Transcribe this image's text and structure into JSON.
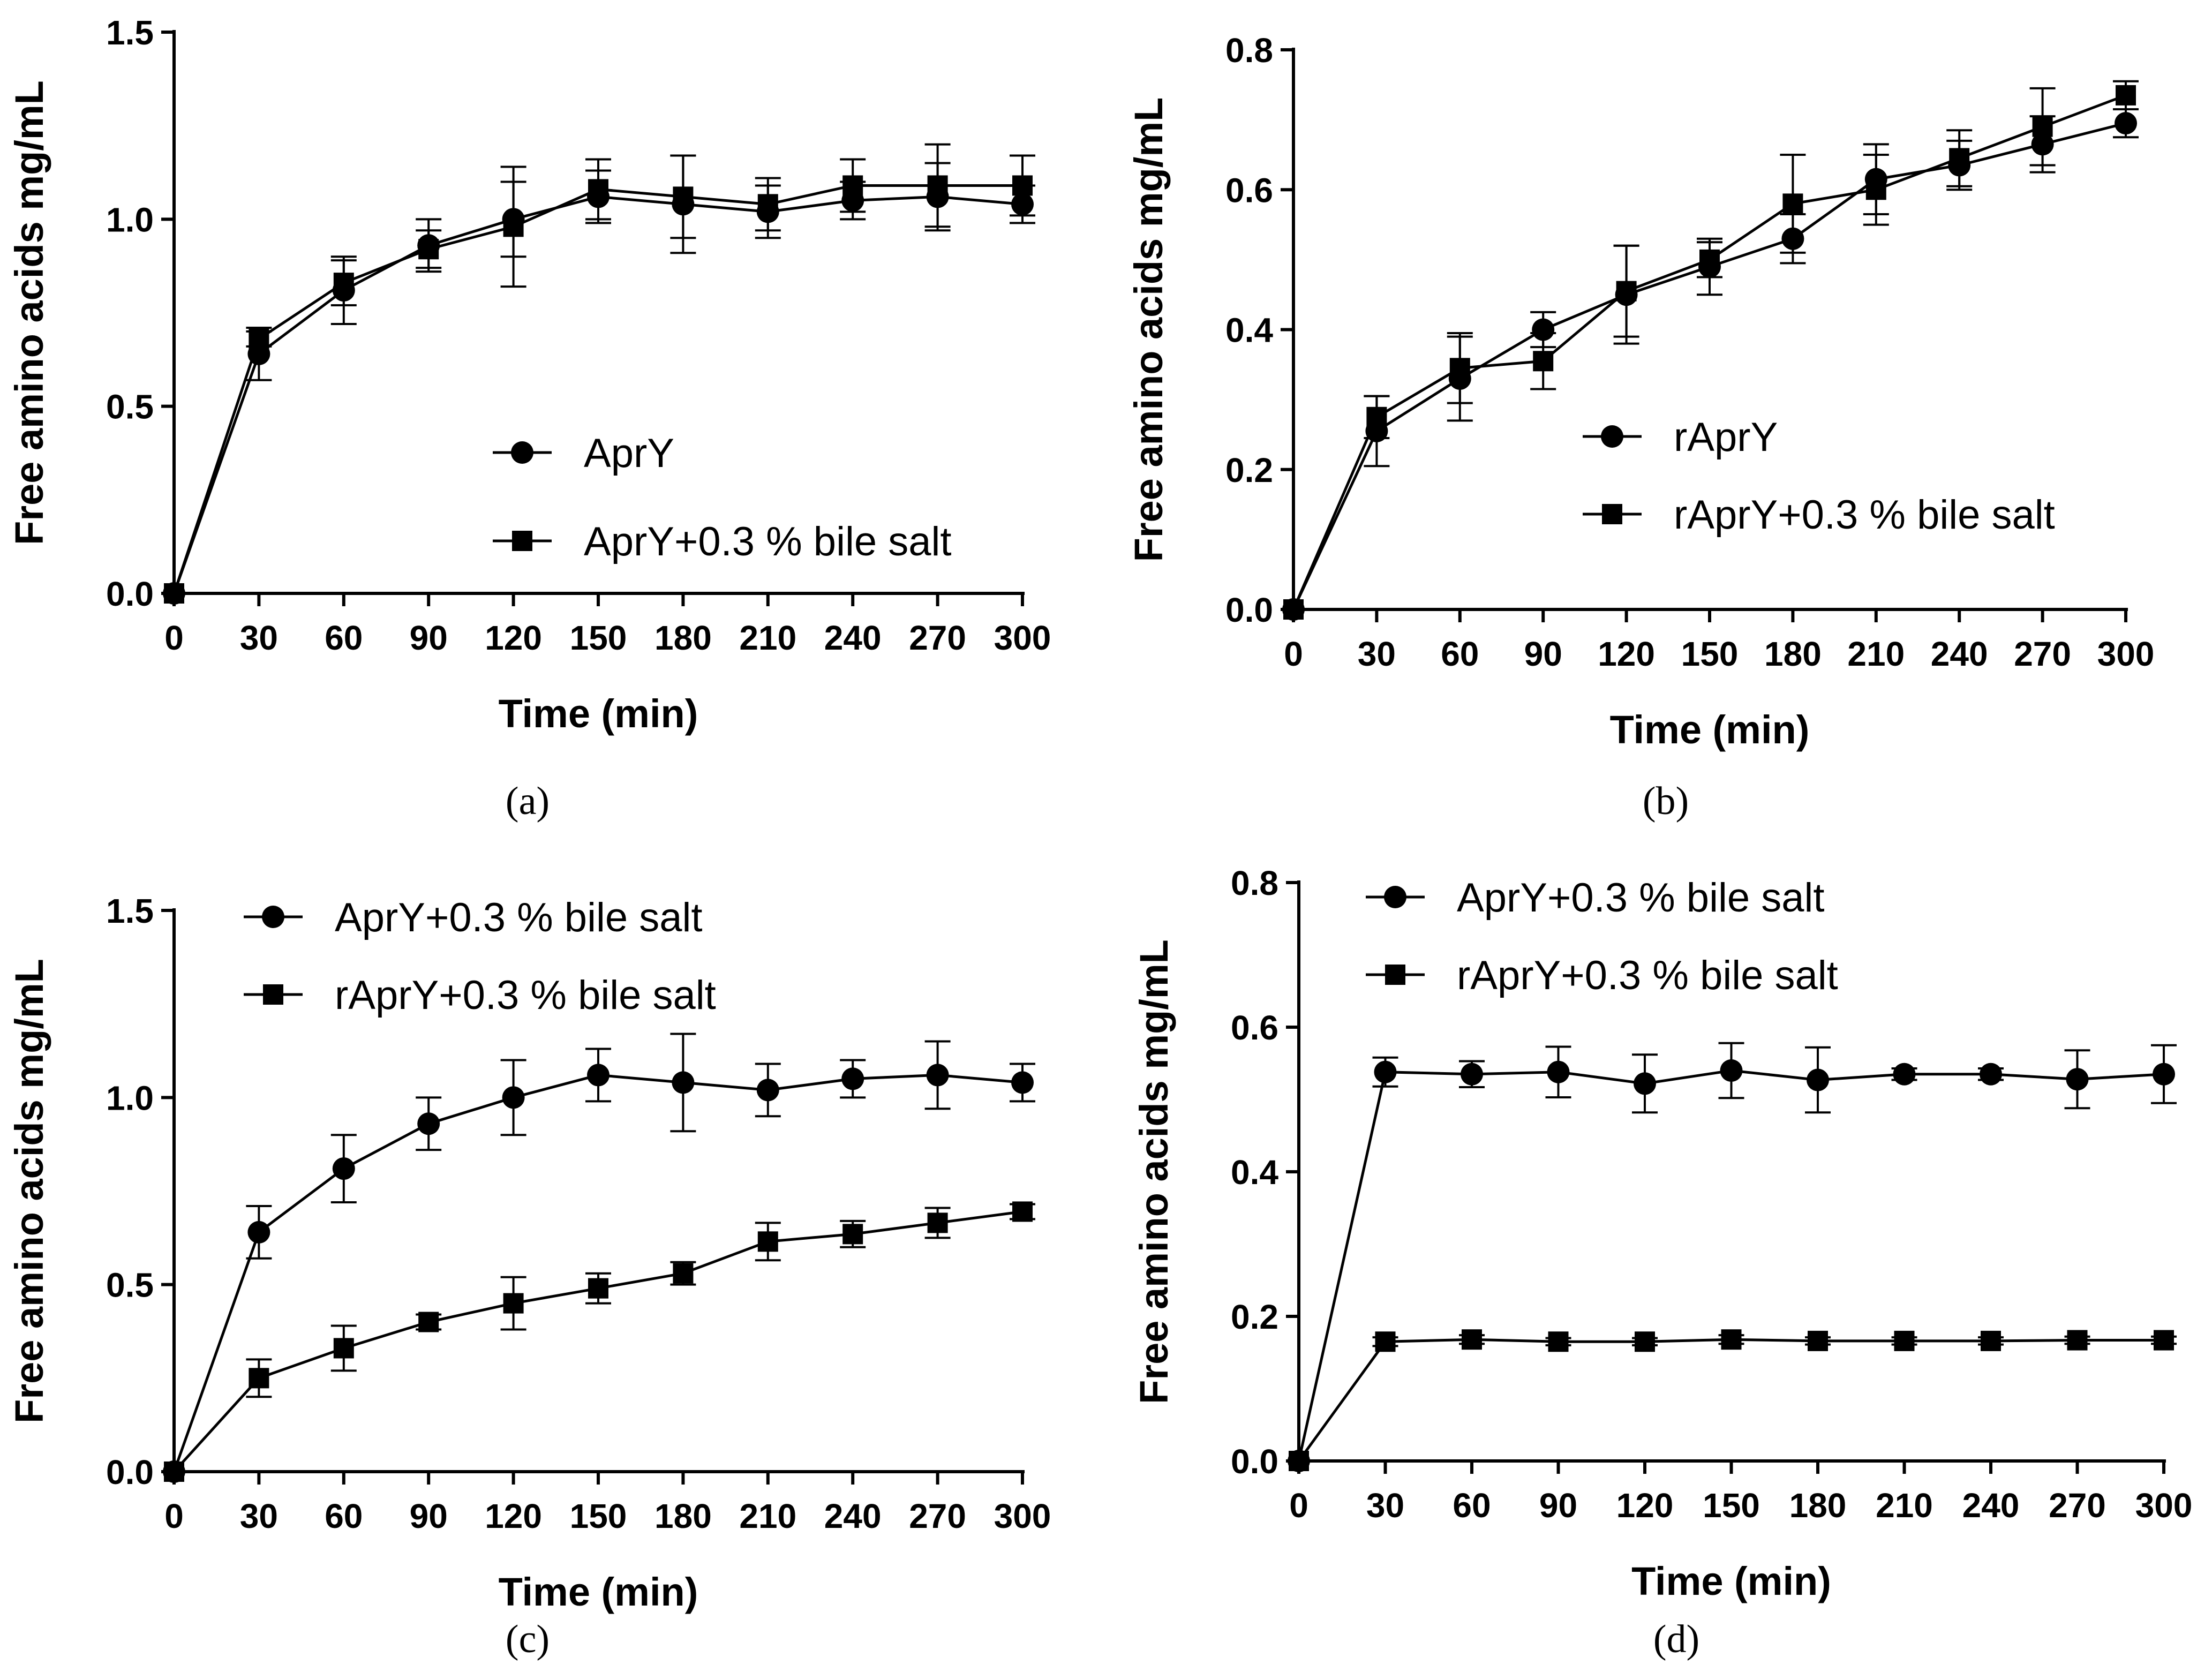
{
  "chart_data": [
    {
      "type": "line",
      "panel_label": "(a)",
      "xlabel": "Time (min)",
      "ylabel": "Free amino acids mg/mL",
      "x": [
        0,
        30,
        60,
        90,
        120,
        150,
        180,
        210,
        240,
        270,
        300
      ],
      "xticks": [
        "0",
        "30",
        "60",
        "90",
        "120",
        "150",
        "180",
        "210",
        "240",
        "270",
        "300"
      ],
      "yticks": [
        "0.0",
        "0.5",
        "1.0",
        "1.5"
      ],
      "xlim": [
        0,
        300
      ],
      "ylim": [
        0,
        1.5
      ],
      "legend_position": "center-right",
      "series": [
        {
          "name": "AprY",
          "marker": "circle",
          "values": [
            0,
            0.64,
            0.81,
            0.93,
            1.0,
            1.06,
            1.04,
            1.02,
            1.05,
            1.06,
            1.04
          ],
          "errors": [
            0,
            0.07,
            0.09,
            0.07,
            0.1,
            0.07,
            0.13,
            0.07,
            0.05,
            0.09,
            0.05
          ]
        },
        {
          "name": "AprY+0.3 % bile salt",
          "marker": "square",
          "values": [
            0,
            0.68,
            0.83,
            0.92,
            0.98,
            1.08,
            1.06,
            1.04,
            1.09,
            1.09,
            1.09
          ],
          "errors": [
            0,
            0.02,
            0.06,
            0.05,
            0.16,
            0.08,
            0.11,
            0.07,
            0.07,
            0.11,
            0.08
          ]
        }
      ]
    },
    {
      "type": "line",
      "panel_label": "(b)",
      "xlabel": "Time (min)",
      "ylabel": "Free amino acids mg/mL",
      "x": [
        0,
        30,
        60,
        90,
        120,
        150,
        180,
        210,
        240,
        270,
        300
      ],
      "xticks": [
        "0",
        "30",
        "60",
        "90",
        "120",
        "150",
        "180",
        "210",
        "240",
        "270",
        "300"
      ],
      "yticks": [
        "0.0",
        "0.2",
        "0.4",
        "0.6",
        "0.8"
      ],
      "xlim": [
        0,
        300
      ],
      "ylim": [
        0,
        0.8
      ],
      "legend_position": "center-right",
      "series": [
        {
          "name": "rAprY",
          "marker": "circle",
          "values": [
            0,
            0.255,
            0.33,
            0.4,
            0.45,
            0.49,
            0.53,
            0.615,
            0.635,
            0.665,
            0.695
          ],
          "errors": [
            0,
            0.05,
            0.06,
            0.025,
            0.07,
            0.04,
            0.035,
            0.05,
            0.035,
            0.04,
            0.02
          ]
        },
        {
          "name": "rAprY+0.3 % bile salt",
          "marker": "square",
          "values": [
            0,
            0.275,
            0.345,
            0.355,
            0.455,
            0.5,
            0.58,
            0.6,
            0.645,
            0.69,
            0.735
          ],
          "errors": [
            0,
            0.03,
            0.05,
            0.04,
            0.065,
            0.025,
            0.07,
            0.05,
            0.04,
            0.055,
            0.02
          ]
        }
      ]
    },
    {
      "type": "line",
      "panel_label": "(c)",
      "xlabel": "Time (min)",
      "ylabel": "Free amino acids mg/mL",
      "x": [
        0,
        30,
        60,
        90,
        120,
        150,
        180,
        210,
        240,
        270,
        300
      ],
      "xticks": [
        "0",
        "30",
        "60",
        "90",
        "120",
        "150",
        "180",
        "210",
        "240",
        "270",
        "300"
      ],
      "yticks": [
        "0.0",
        "0.5",
        "1.0",
        "1.5"
      ],
      "xlim": [
        0,
        300
      ],
      "ylim": [
        0,
        1.5
      ],
      "legend_position": "top-center",
      "series": [
        {
          "name": "AprY+0.3 % bile salt",
          "marker": "circle",
          "values": [
            0,
            0.64,
            0.81,
            0.93,
            1.0,
            1.06,
            1.04,
            1.02,
            1.05,
            1.06,
            1.04
          ],
          "errors": [
            0,
            0.07,
            0.09,
            0.07,
            0.1,
            0.07,
            0.13,
            0.07,
            0.05,
            0.09,
            0.05
          ]
        },
        {
          "name": "rAprY+0.3 % bile salt",
          "marker": "square",
          "values": [
            0,
            0.25,
            0.33,
            0.4,
            0.45,
            0.49,
            0.53,
            0.615,
            0.635,
            0.665,
            0.695
          ],
          "errors": [
            0,
            0.05,
            0.06,
            0.02,
            0.07,
            0.04,
            0.03,
            0.05,
            0.035,
            0.04,
            0.02
          ]
        }
      ]
    },
    {
      "type": "line",
      "panel_label": "(d)",
      "xlabel": "Time (min)",
      "ylabel": "Free amino acids mg/mL",
      "x": [
        0,
        30,
        60,
        90,
        120,
        150,
        180,
        210,
        240,
        270,
        300
      ],
      "xticks": [
        "0",
        "30",
        "60",
        "90",
        "120",
        "150",
        "180",
        "210",
        "240",
        "270",
        "300"
      ],
      "yticks": [
        "0.0",
        "0.2",
        "0.4",
        "0.6",
        "0.8"
      ],
      "xlim": [
        0,
        300
      ],
      "ylim": [
        0,
        0.8
      ],
      "legend_position": "top-center",
      "series": [
        {
          "name": "AprY+0.3 % bile salt",
          "marker": "circle",
          "values": [
            0,
            0.538,
            0.535,
            0.538,
            0.522,
            0.54,
            0.527,
            0.535,
            0.535,
            0.528,
            0.535
          ],
          "errors": [
            0,
            0.02,
            0.018,
            0.035,
            0.04,
            0.038,
            0.045,
            0.008,
            0.008,
            0.04,
            0.04
          ]
        },
        {
          "name": "rAprY+0.3 % bile salt",
          "marker": "square",
          "values": [
            0,
            0.165,
            0.168,
            0.165,
            0.165,
            0.168,
            0.166,
            0.166,
            0.166,
            0.167,
            0.167
          ],
          "errors": [
            0,
            0.006,
            0.006,
            0.005,
            0.005,
            0.006,
            0.005,
            0.005,
            0.005,
            0.005,
            0.005
          ]
        }
      ]
    }
  ]
}
